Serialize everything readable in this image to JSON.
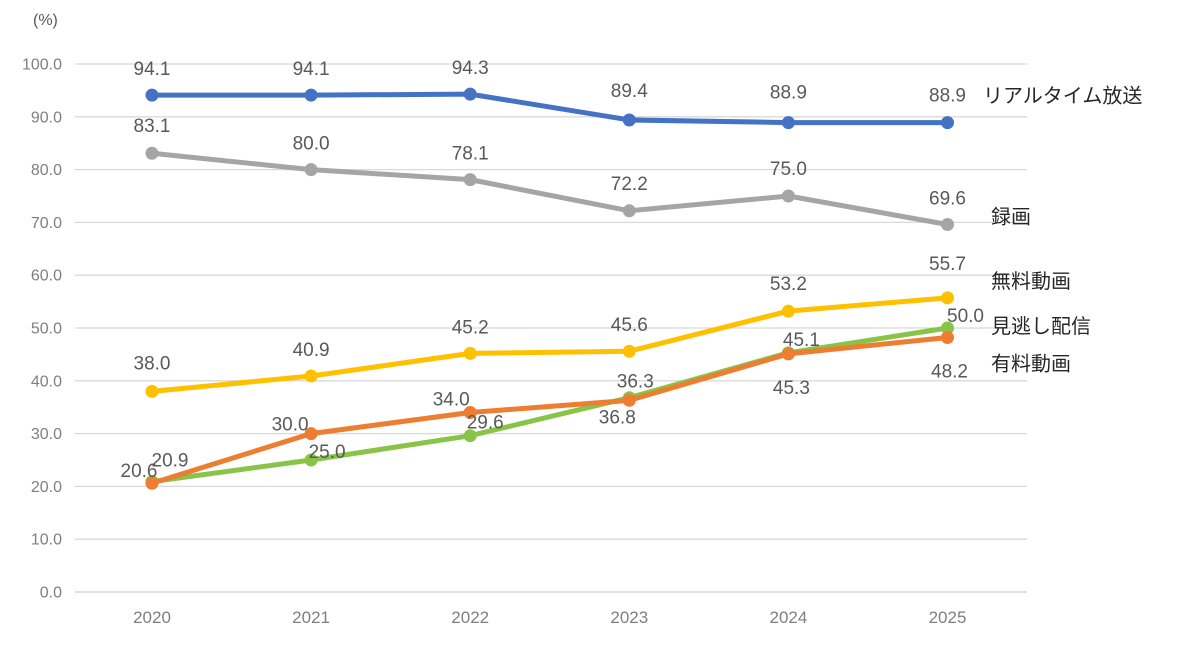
{
  "page": {
    "background_color": "#ffffff"
  },
  "chart_data": {
    "type": "line",
    "title": "",
    "unit_label": "(%)",
    "categories": [
      "2020",
      "2021",
      "2022",
      "2023",
      "2024",
      "2025"
    ],
    "y_axis": {
      "min": 0,
      "max": 100,
      "tick_step": 10,
      "tick_labels": [
        "0.0",
        "10.0",
        "20.0",
        "30.0",
        "40.0",
        "50.0",
        "60.0",
        "70.0",
        "80.0",
        "90.0",
        "100.0"
      ]
    },
    "grid": {
      "show": true,
      "color": "#d9d9d9",
      "zero_line_color": "#cccccc"
    },
    "legend_position": "right-of-line-ends",
    "styles": {
      "data_label_color": "#595959",
      "tick_label_color": "#7f7f7f",
      "legend_label_color": "#262626"
    },
    "series": [
      {
        "key": "realtime-broadcast",
        "name": "リアルタイム放送",
        "color": "#4472C4",
        "values": [
          94.1,
          94.1,
          94.3,
          89.4,
          88.9,
          88.9
        ],
        "value_labels": [
          "94.1",
          "94.1",
          "94.3",
          "89.4",
          "88.9",
          "88.9"
        ],
        "label_offsets": [
          [
            0,
            -20
          ],
          [
            0,
            -20
          ],
          [
            0,
            -20
          ],
          [
            0,
            -23
          ],
          [
            0,
            -24
          ],
          [
            0,
            -21
          ]
        ],
        "legend_anchor": [
          983,
          -27
        ]
      },
      {
        "key": "recorded-playback",
        "name": "録画",
        "color": "#A5A5A5",
        "values": [
          83.1,
          80.0,
          78.1,
          72.2,
          75.0,
          69.6
        ],
        "value_labels": [
          "83.1",
          "80.0",
          "78.1",
          "72.2",
          "75.0",
          "69.6"
        ],
        "label_offsets": [
          [
            0,
            -21
          ],
          [
            0,
            -20
          ],
          [
            0,
            -20
          ],
          [
            0,
            -21
          ],
          [
            0,
            -21
          ],
          [
            0,
            -20
          ]
        ],
        "legend_anchor": [
          991,
          -8
        ]
      },
      {
        "key": "free-video",
        "name": "無料動画",
        "color": "#FFC000",
        "values": [
          38.0,
          40.9,
          45.2,
          45.6,
          53.2,
          55.7
        ],
        "value_labels": [
          "38.0",
          "40.9",
          "45.2",
          "45.6",
          "53.2",
          "55.7"
        ],
        "label_offsets": [
          [
            0,
            -22
          ],
          [
            0,
            -20
          ],
          [
            0,
            -20
          ],
          [
            0,
            -20
          ],
          [
            0,
            -21
          ],
          [
            0,
            -28
          ]
        ],
        "legend_anchor": [
          991,
          -17
        ]
      },
      {
        "key": "catchup-streaming",
        "name": "見逃し配信",
        "color": "#87C447",
        "values": [
          20.9,
          25.0,
          29.6,
          36.8,
          45.3,
          50.0
        ],
        "value_labels": [
          "20.9",
          "25.0",
          "29.6",
          "36.8",
          "45.3",
          "50.0"
        ],
        "label_offsets": [
          [
            18,
            -15
          ],
          [
            16,
            -2
          ],
          [
            15,
            -7
          ],
          [
            -12,
            26
          ],
          [
            3,
            41
          ],
          [
            18,
            -6
          ]
        ],
        "legend_anchor": [
          991,
          -2
        ]
      },
      {
        "key": "paid-video",
        "name": "有料動画",
        "color": "#ED7D31",
        "values": [
          20.6,
          30.0,
          34.0,
          36.3,
          45.1,
          48.2
        ],
        "value_labels": [
          "20.6",
          "30.0",
          "34.0",
          "36.3",
          "45.1",
          "48.2"
        ],
        "label_offsets": [
          [
            -13,
            -6
          ],
          [
            -21,
            -3
          ],
          [
            -19,
            -7
          ],
          [
            6,
            -13
          ],
          [
            13,
            -8
          ],
          [
            2,
            40
          ]
        ],
        "legend_anchor": [
          991,
          26
        ]
      }
    ],
    "draw_order": [
      "realtime-broadcast",
      "recorded-playback",
      "free-video",
      "catchup-streaming",
      "paid-video"
    ]
  }
}
